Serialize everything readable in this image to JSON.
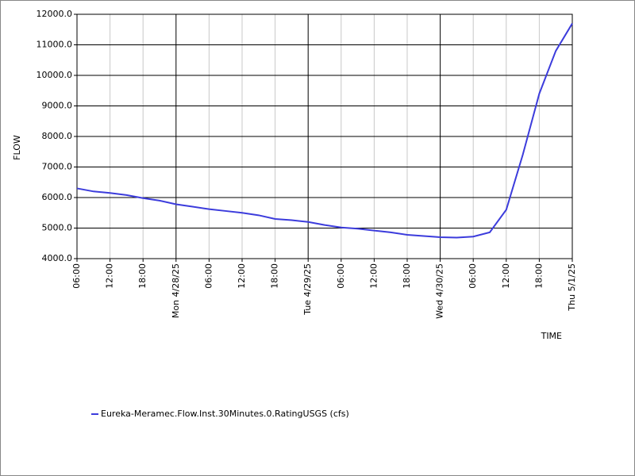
{
  "chart_data": {
    "type": "line",
    "xlabel": "TIME",
    "ylabel": "FLOW",
    "x": [
      "2025-04-27T06:00",
      "2025-04-27T09:00",
      "2025-04-27T12:00",
      "2025-04-27T15:00",
      "2025-04-27T18:00",
      "2025-04-27T21:00",
      "2025-04-28T00:00",
      "2025-04-28T03:00",
      "2025-04-28T06:00",
      "2025-04-28T09:00",
      "2025-04-28T12:00",
      "2025-04-28T15:00",
      "2025-04-28T18:00",
      "2025-04-28T21:00",
      "2025-04-29T00:00",
      "2025-04-29T03:00",
      "2025-04-29T06:00",
      "2025-04-29T09:00",
      "2025-04-29T12:00",
      "2025-04-29T15:00",
      "2025-04-29T18:00",
      "2025-04-29T21:00",
      "2025-04-30T00:00",
      "2025-04-30T03:00",
      "2025-04-30T06:00",
      "2025-04-30T09:00",
      "2025-04-30T12:00",
      "2025-04-30T15:00",
      "2025-04-30T18:00",
      "2025-04-30T21:00",
      "2025-05-01T00:00"
    ],
    "series": [
      {
        "name": "Eureka-Meramec.Flow.Inst.30Minutes.0.RatingUSGS (cfs)",
        "color": "#3c3cdc",
        "values": [
          6300,
          6200,
          6150,
          6080,
          5980,
          5900,
          5780,
          5700,
          5620,
          5560,
          5500,
          5420,
          5300,
          5260,
          5200,
          5100,
          5020,
          4980,
          4920,
          4860,
          4780,
          4740,
          4700,
          4690,
          4720,
          4860,
          5600,
          7400,
          9400,
          10800,
          11700
        ]
      }
    ],
    "xlim": [
      "2025-04-27T06:00",
      "2025-05-01T00:00"
    ],
    "xticks": [
      {
        "value": "2025-04-27T06:00",
        "label": "06:00"
      },
      {
        "value": "2025-04-27T12:00",
        "label": "12:00"
      },
      {
        "value": "2025-04-27T18:00",
        "label": "18:00"
      },
      {
        "value": "2025-04-28T00:00",
        "label": "Mon 4/28/25"
      },
      {
        "value": "2025-04-28T06:00",
        "label": "06:00"
      },
      {
        "value": "2025-04-28T12:00",
        "label": "12:00"
      },
      {
        "value": "2025-04-28T18:00",
        "label": "18:00"
      },
      {
        "value": "2025-04-29T00:00",
        "label": "Tue 4/29/25"
      },
      {
        "value": "2025-04-29T06:00",
        "label": "06:00"
      },
      {
        "value": "2025-04-29T12:00",
        "label": "12:00"
      },
      {
        "value": "2025-04-29T18:00",
        "label": "18:00"
      },
      {
        "value": "2025-04-30T00:00",
        "label": "Wed 4/30/25"
      },
      {
        "value": "2025-04-30T06:00",
        "label": "06:00"
      },
      {
        "value": "2025-04-30T12:00",
        "label": "12:00"
      },
      {
        "value": "2025-04-30T18:00",
        "label": "18:00"
      },
      {
        "value": "2025-05-01T00:00",
        "label": "Thu 5/1/25"
      }
    ],
    "ylim": [
      4000,
      12000
    ],
    "yticks": [
      {
        "value": 4000,
        "label": "4000.0"
      },
      {
        "value": 5000,
        "label": "5000.0"
      },
      {
        "value": 6000,
        "label": "6000.0"
      },
      {
        "value": 7000,
        "label": "7000.0"
      },
      {
        "value": 8000,
        "label": "8000.0"
      },
      {
        "value": 9000,
        "label": "9000.0"
      },
      {
        "value": 10000,
        "label": "10000.0"
      },
      {
        "value": 11000,
        "label": "11000.0"
      },
      {
        "value": 12000,
        "label": "12000.0"
      }
    ],
    "grid": true
  }
}
